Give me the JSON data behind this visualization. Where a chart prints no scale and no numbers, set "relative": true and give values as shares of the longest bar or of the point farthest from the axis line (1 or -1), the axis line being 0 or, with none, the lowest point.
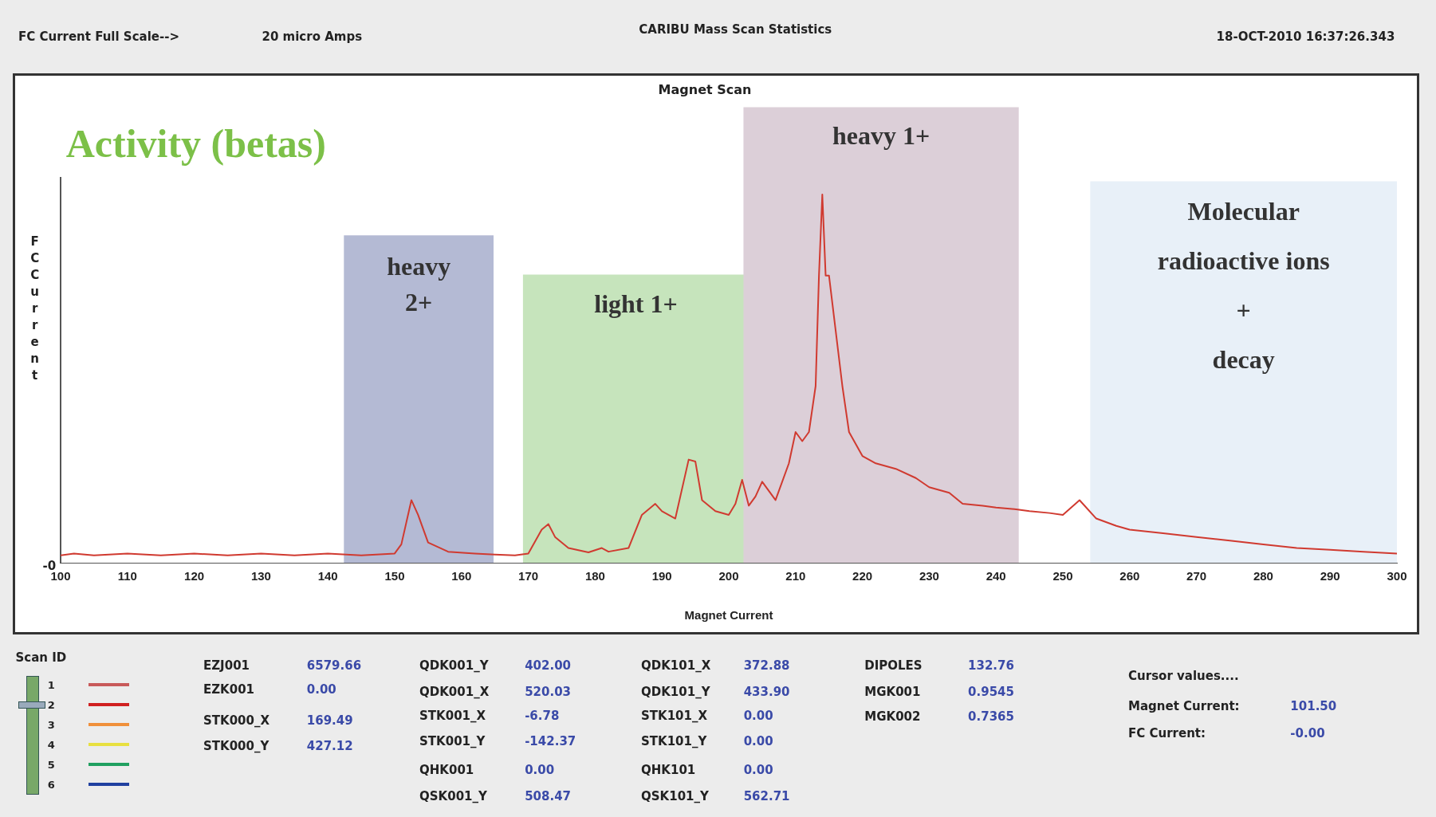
{
  "chart_data": {
    "type": "line",
    "title": "Magnet Scan",
    "xlabel": "Magnet Current",
    "ylabel": "FC Current",
    "relative": true,
    "grid": false,
    "legend": false,
    "marker": "none",
    "xlim": [
      100,
      300
    ],
    "xticks": [
      100,
      110,
      120,
      130,
      140,
      150,
      160,
      170,
      180,
      190,
      200,
      210,
      220,
      230,
      240,
      250,
      260,
      270,
      280,
      290,
      300
    ],
    "x": [
      100,
      102,
      105,
      110,
      115,
      120,
      125,
      130,
      135,
      140,
      145,
      150,
      151,
      152.5,
      153.5,
      155,
      158,
      162,
      165,
      168,
      170,
      172,
      173,
      174,
      176,
      179,
      181,
      182,
      185,
      187,
      189,
      190,
      192,
      194,
      195,
      196,
      198,
      200,
      201,
      202,
      203,
      204,
      205,
      207,
      209,
      210,
      211,
      212,
      213,
      213.5,
      214,
      214.5,
      215,
      216,
      217,
      218,
      220,
      222,
      225,
      228,
      230,
      233,
      235,
      238,
      240,
      243,
      245,
      248,
      250,
      252.5,
      255,
      258,
      260,
      265,
      270,
      275,
      280,
      285,
      290,
      295,
      300
    ],
    "series": [
      {
        "color": "#d03a30",
        "values": [
          0.02,
          0.025,
          0.02,
          0.025,
          0.02,
          0.025,
          0.02,
          0.025,
          0.02,
          0.025,
          0.02,
          0.025,
          0.05,
          0.17,
          0.13,
          0.055,
          0.03,
          0.025,
          0.022,
          0.02,
          0.025,
          0.09,
          0.105,
          0.07,
          0.04,
          0.028,
          0.04,
          0.03,
          0.04,
          0.13,
          0.16,
          0.14,
          0.12,
          0.28,
          0.275,
          0.17,
          0.14,
          0.13,
          0.16,
          0.225,
          0.155,
          0.18,
          0.22,
          0.17,
          0.27,
          0.355,
          0.33,
          0.355,
          0.48,
          0.78,
          1,
          0.78,
          0.78,
          0.63,
          0.48,
          0.355,
          0.29,
          0.27,
          0.255,
          0.23,
          0.205,
          0.19,
          0.16,
          0.155,
          0.15,
          0.145,
          0.14,
          0.135,
          0.13,
          0.17,
          0.12,
          0.1,
          0.09,
          0.08,
          0.07,
          0.06,
          0.05,
          0.04,
          0.035,
          0.03,
          0.025
        ]
      }
    ],
    "bands": [
      {
        "axis": "x",
        "from": 142.4,
        "to": 164.8,
        "label": "heavy\n2+",
        "color": "#b4bad4"
      },
      {
        "axis": "x",
        "from": 169.2,
        "to": 203,
        "label": "light 1+",
        "color": "#c6e4bc"
      },
      {
        "axis": "x",
        "from": 202.2,
        "to": 243.4,
        "label": "heavy 1+",
        "color": "#dccfd8"
      },
      {
        "axis": "x",
        "from": 254.1,
        "to": 300,
        "label": "Molecular\nradioactive ions\n+\ndecay",
        "color": "#e8f0f8"
      }
    ],
    "annotations": [
      "FC Current Full Scale-->",
      "20 micro Amps",
      "CARIBU Mass Scan Statistics",
      "18-OCT-2010 16:37:26.343",
      "Activity (betas)",
      "-0",
      "Scan ID",
      "1",
      "2",
      "3",
      "4",
      "5",
      "6",
      "EZJ001",
      "6579.66",
      "EZK001",
      "0.00",
      "STK000_X",
      "169.49",
      "STK000_Y",
      "427.12",
      "QDK001_Y",
      "402.00",
      "QDK001_X",
      "520.03",
      "STK001_X",
      "-6.78",
      "STK001_Y",
      "-142.37",
      "QHK001",
      "0.00",
      "QSK001_Y",
      "508.47",
      "QDK101_X",
      "372.88",
      "QDK101_Y",
      "433.90",
      "STK101_X",
      "0.00",
      "STK101_Y",
      "0.00",
      "QHK101",
      "0.00",
      "QSK101_Y",
      "562.71",
      "DIPOLES",
      "132.76",
      "MGK001",
      "0.9545",
      "MGK002",
      "0.7365",
      "Cursor values....",
      "Magnet Current:",
      "101.50",
      "FC Current:",
      "-0.00"
    ]
  }
}
